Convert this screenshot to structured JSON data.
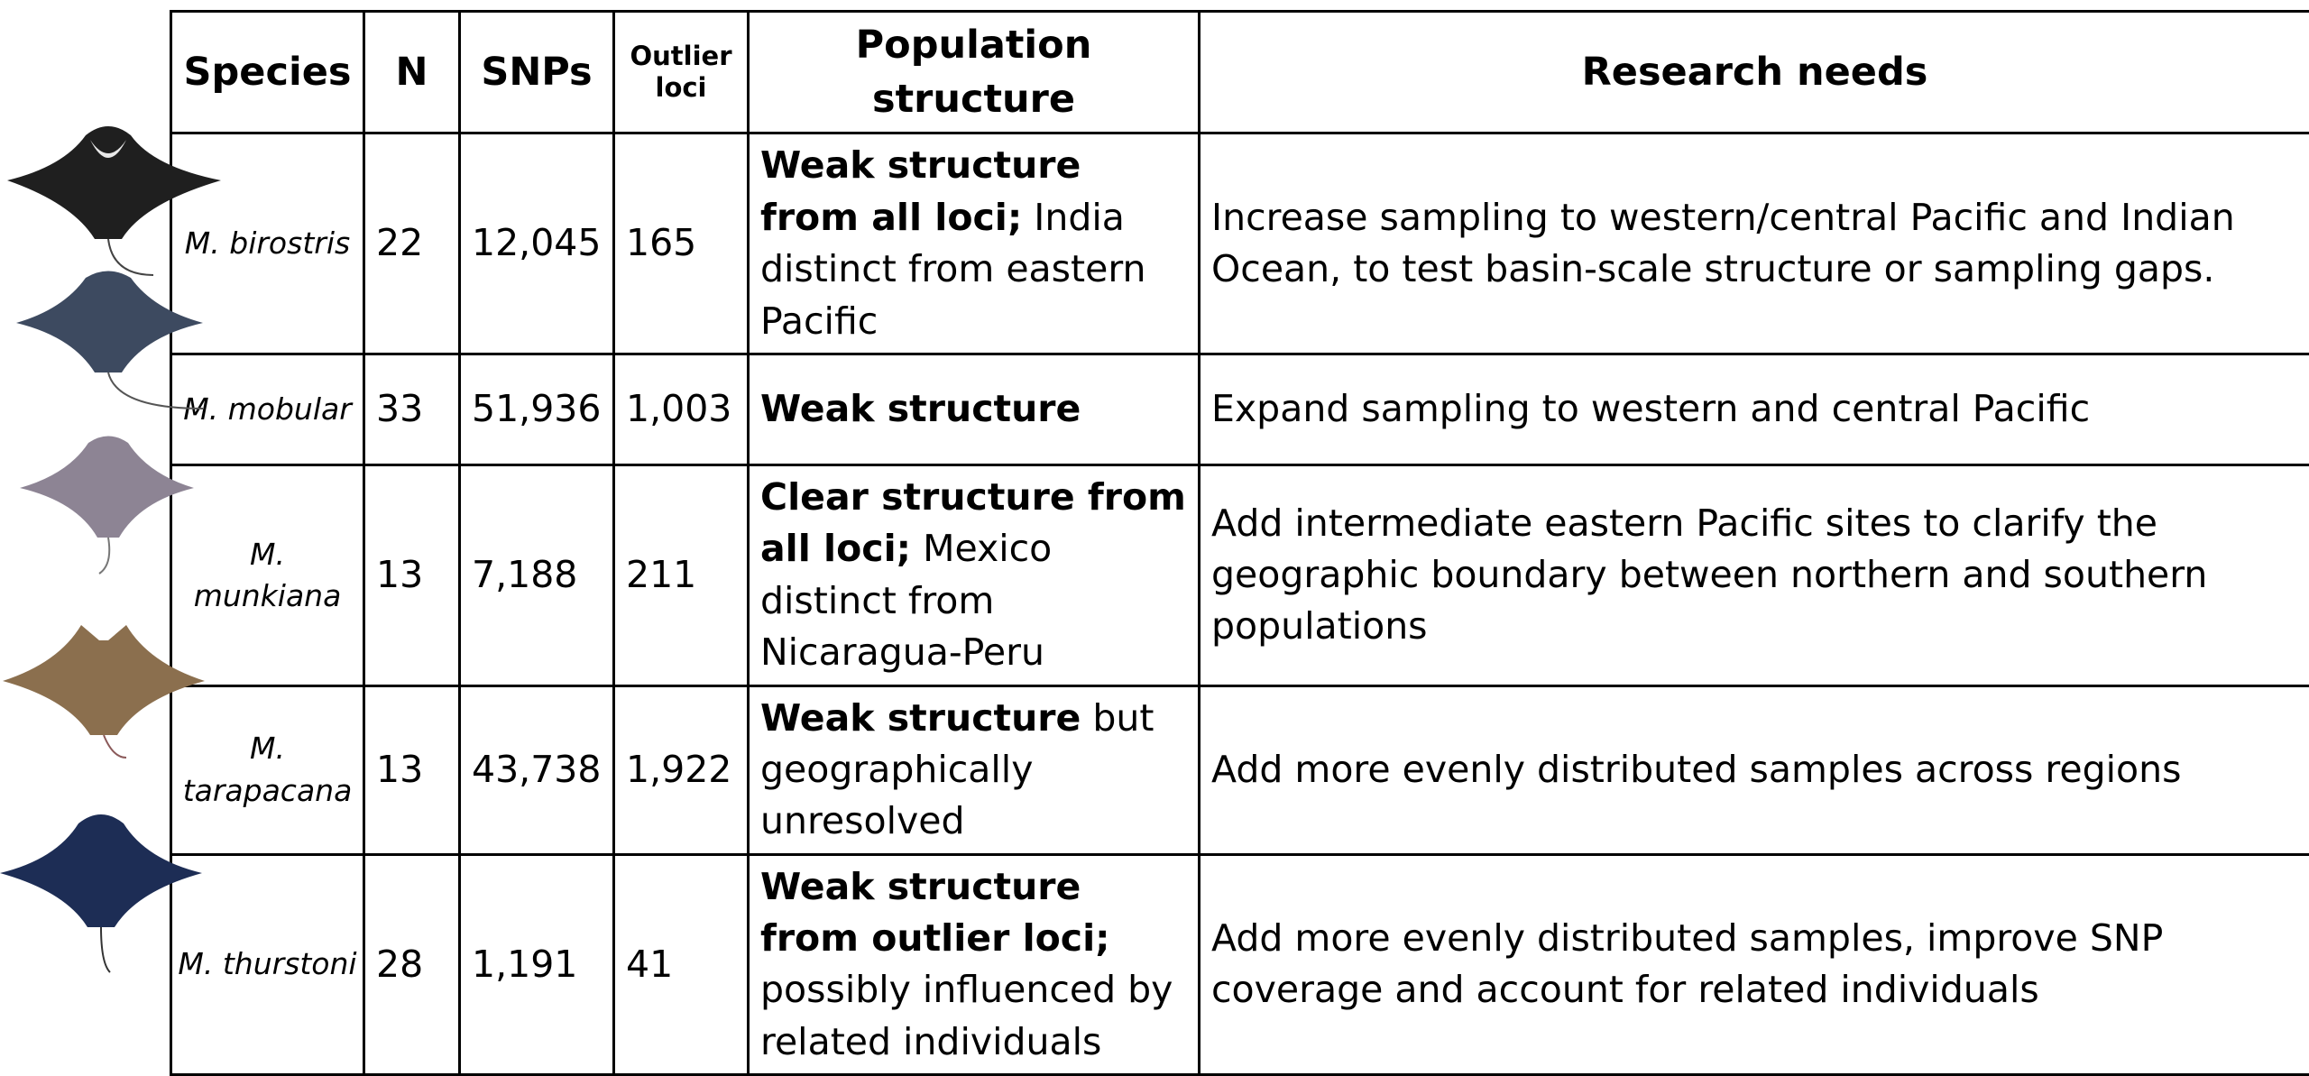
{
  "header": {
    "species": "Species",
    "n": "N",
    "snps": "SNPs",
    "outlier_loci": "Outlier loci",
    "population_structure": "Population structure",
    "research_needs": "Research needs"
  },
  "rows": [
    {
      "species": "M. birostris",
      "n": "22",
      "snps": "12,045",
      "outlier_loci": "165",
      "population_structure": {
        "bold": "Weak structure from all loci;",
        "rest": "India distinct from eastern Pacific"
      },
      "research_needs": "Increase sampling to western/central Pacific and Indian Ocean, to test basin-scale structure or sampling gaps."
    },
    {
      "species": "M. mobular",
      "n": "33",
      "snps": "51,936",
      "outlier_loci": "1,003",
      "population_structure": {
        "bold": "Weak structure"
      },
      "research_needs": "Expand sampling to western and central Pacific"
    },
    {
      "species": "M. munkiana",
      "n": "13",
      "snps": "7,188",
      "outlier_loci": "211",
      "population_structure": {
        "bold": "Clear structure from all loci;",
        "rest": "Mexico distinct from Nicaragua-Peru"
      },
      "research_needs": "Add intermediate eastern Pacific sites to clarify the geographic boundary between northern and southern populations"
    },
    {
      "species": "M. tarapacana",
      "n": "13",
      "snps": "43,738",
      "outlier_loci": "1,922",
      "population_structure": {
        "bold": "Weak structure",
        "rest": "but geographically unresolved"
      },
      "research_needs": "Add more evenly distributed samples across regions"
    },
    {
      "species": "M. thurstoni",
      "n": "28",
      "snps": "1,191",
      "outlier_loci": "41",
      "population_structure": {
        "bold": "Weak structure from outlier loci;",
        "rest": "possibly influenced by related individuals"
      },
      "research_needs": "Add more evenly distributed samples, improve SNP coverage and account for related individuals"
    }
  ]
}
